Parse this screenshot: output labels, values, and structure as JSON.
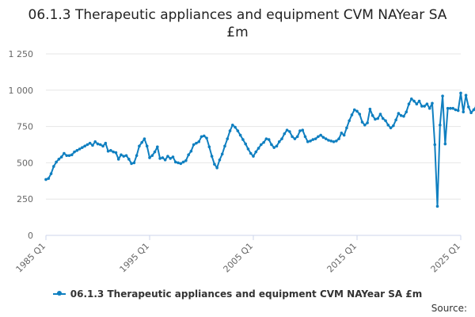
{
  "colors": {
    "series": "#0f7fc0",
    "grid": "#e6e6e6",
    "axis": "#ccd6eb",
    "tick_text": "#666666"
  },
  "source_label": "Source:",
  "chart_data": {
    "type": "line",
    "title": "06.1.3 Therapeutic appliances and equipment CVM NAYear SA £m",
    "xlabel": "",
    "ylabel": "",
    "ylim": [
      0,
      1250
    ],
    "yticks": [
      0,
      250,
      500,
      750,
      1000,
      1250
    ],
    "ytick_labels": [
      "0",
      "250",
      "500",
      "750",
      "1 000",
      "1 250"
    ],
    "xticks": [
      "1985 Q1",
      "1995 Q1",
      "2005 Q1",
      "2015 Q1",
      "2025 Q1"
    ],
    "grid": true,
    "legend": "bottom",
    "series": [
      {
        "name": "06.1.3 Therapeutic appliances and equipment CVM NAYear SA £m",
        "x_start": "1985 Q1",
        "values": [
          385,
          392,
          425,
          475,
          505,
          525,
          540,
          565,
          550,
          550,
          555,
          575,
          585,
          595,
          605,
          615,
          625,
          635,
          620,
          645,
          630,
          625,
          615,
          635,
          580,
          585,
          575,
          570,
          525,
          555,
          545,
          550,
          525,
          495,
          500,
          550,
          615,
          640,
          665,
          615,
          535,
          550,
          575,
          610,
          530,
          535,
          520,
          545,
          530,
          540,
          505,
          500,
          495,
          505,
          515,
          555,
          580,
          625,
          635,
          645,
          680,
          685,
          670,
          610,
          545,
          490,
          465,
          520,
          560,
          615,
          665,
          720,
          760,
          745,
          720,
          690,
          660,
          630,
          595,
          565,
          545,
          575,
          600,
          625,
          640,
          665,
          660,
          625,
          605,
          615,
          645,
          665,
          700,
          725,
          715,
          680,
          665,
          680,
          720,
          725,
          680,
          645,
          650,
          660,
          665,
          680,
          690,
          675,
          665,
          655,
          650,
          645,
          650,
          665,
          705,
          690,
          740,
          790,
          830,
          865,
          855,
          835,
          780,
          760,
          775,
          870,
          825,
          800,
          805,
          835,
          805,
          790,
          760,
          740,
          755,
          795,
          840,
          825,
          820,
          850,
          905,
          940,
          925,
          905,
          925,
          890,
          890,
          905,
          875,
          910,
          625,
          200,
          760,
          960,
          630,
          875,
          875,
          875,
          865,
          860,
          980,
          850,
          965,
          885,
          845,
          865,
          890,
          795,
          815,
          860,
          875,
          845,
          835,
          925
        ]
      }
    ]
  }
}
